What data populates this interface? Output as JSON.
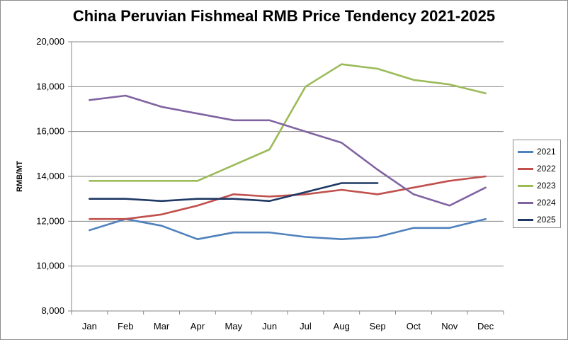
{
  "chart_data": {
    "type": "line",
    "title": "China Peruvian Fishmeal RMB Price Tendency 2021-2025",
    "xlabel": "",
    "ylabel": "RMB/MT",
    "categories": [
      "Jan",
      "Feb",
      "Mar",
      "Apr",
      "May",
      "Jun",
      "Jul",
      "Aug",
      "Sep",
      "Oct",
      "Nov",
      "Dec"
    ],
    "ylim": [
      8000,
      20000
    ],
    "yticks": [
      8000,
      10000,
      12000,
      14000,
      16000,
      18000,
      20000
    ],
    "ytick_labels": [
      "8,000",
      "10,000",
      "12,000",
      "14,000",
      "16,000",
      "18,000",
      "20,000"
    ],
    "grid": true,
    "legend_position": "right",
    "series": [
      {
        "name": "2021",
        "color": "#4f81bd",
        "values": [
          11600,
          12100,
          11800,
          11200,
          11500,
          11500,
          11300,
          11200,
          11300,
          11700,
          11700,
          12100
        ]
      },
      {
        "name": "2022",
        "color": "#c0504d",
        "values": [
          12100,
          12100,
          12300,
          12700,
          13200,
          13100,
          13200,
          13400,
          13200,
          13500,
          13800,
          14000
        ]
      },
      {
        "name": "2023",
        "color": "#9bbb59",
        "values": [
          13800,
          13800,
          13800,
          13800,
          14500,
          15200,
          18000,
          19000,
          18800,
          18300,
          18100,
          17700
        ]
      },
      {
        "name": "2024",
        "color": "#8064a2",
        "values": [
          17400,
          17600,
          17100,
          16800,
          16500,
          16500,
          16000,
          15500,
          14300,
          13200,
          12700,
          13500
        ]
      },
      {
        "name": "2025",
        "color": "#1f3864",
        "values": [
          13000,
          13000,
          12900,
          13000,
          13000,
          12900,
          13300,
          13700,
          13700,
          null,
          null,
          null
        ]
      }
    ]
  }
}
